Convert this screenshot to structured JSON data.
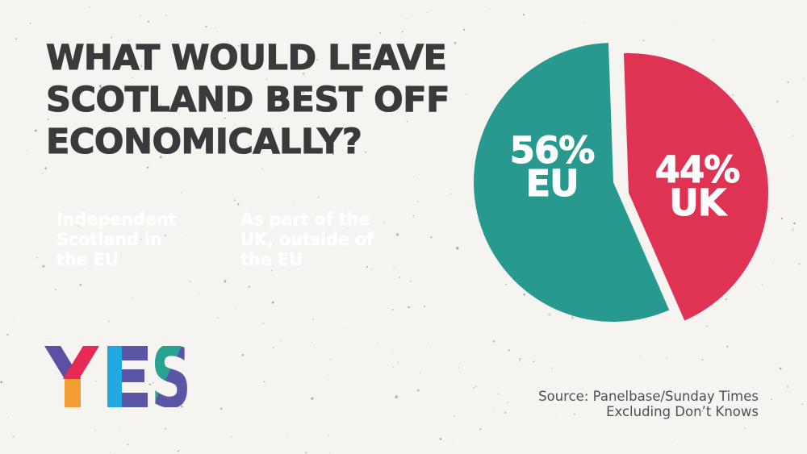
{
  "page": {
    "background": "#f5f4f1"
  },
  "title": {
    "lines": [
      "WHAT WOULD LEAVE",
      "SCOTLAND BEST OFF",
      "ECONOMICALLY?"
    ],
    "color": "#3a393b"
  },
  "legend": {
    "items": [
      {
        "label": "Independent\nScotland in\nthe EU",
        "color": "#27998f"
      },
      {
        "label": "As part of the\nUK, outside of\nthe EU",
        "color": "#e03253"
      }
    ]
  },
  "chart_data": {
    "type": "pie",
    "title": "What would leave Scotland best off economically?",
    "slices": [
      {
        "label": "UK",
        "display": "44%",
        "value": 44,
        "color": "#e03253",
        "exploded": true
      },
      {
        "label": "EU",
        "display": "56%",
        "value": 56,
        "color": "#27998f",
        "exploded": false
      }
    ],
    "start_angle_deg": -2,
    "center": [
      760,
      226
    ],
    "radius": 173,
    "explode_offset": [
      19,
      13
    ],
    "legend_position": "left-boxes",
    "labels_on_slices": true
  },
  "logo": {
    "text": "YES",
    "colors": {
      "y_left_arm": "#5b50a4",
      "y_right_arm": "#e62a53",
      "y_stem": "#f49d35",
      "e_bar": "#23a9e1",
      "e_arms": "#5b55a6",
      "s_top": "#29a193",
      "s_bottom": "#5b55a6"
    }
  },
  "source": {
    "line1": "Source: Panelbase/Sunday Times",
    "line2": "Excluding Don’t Knows",
    "color": "#4f4f51"
  }
}
